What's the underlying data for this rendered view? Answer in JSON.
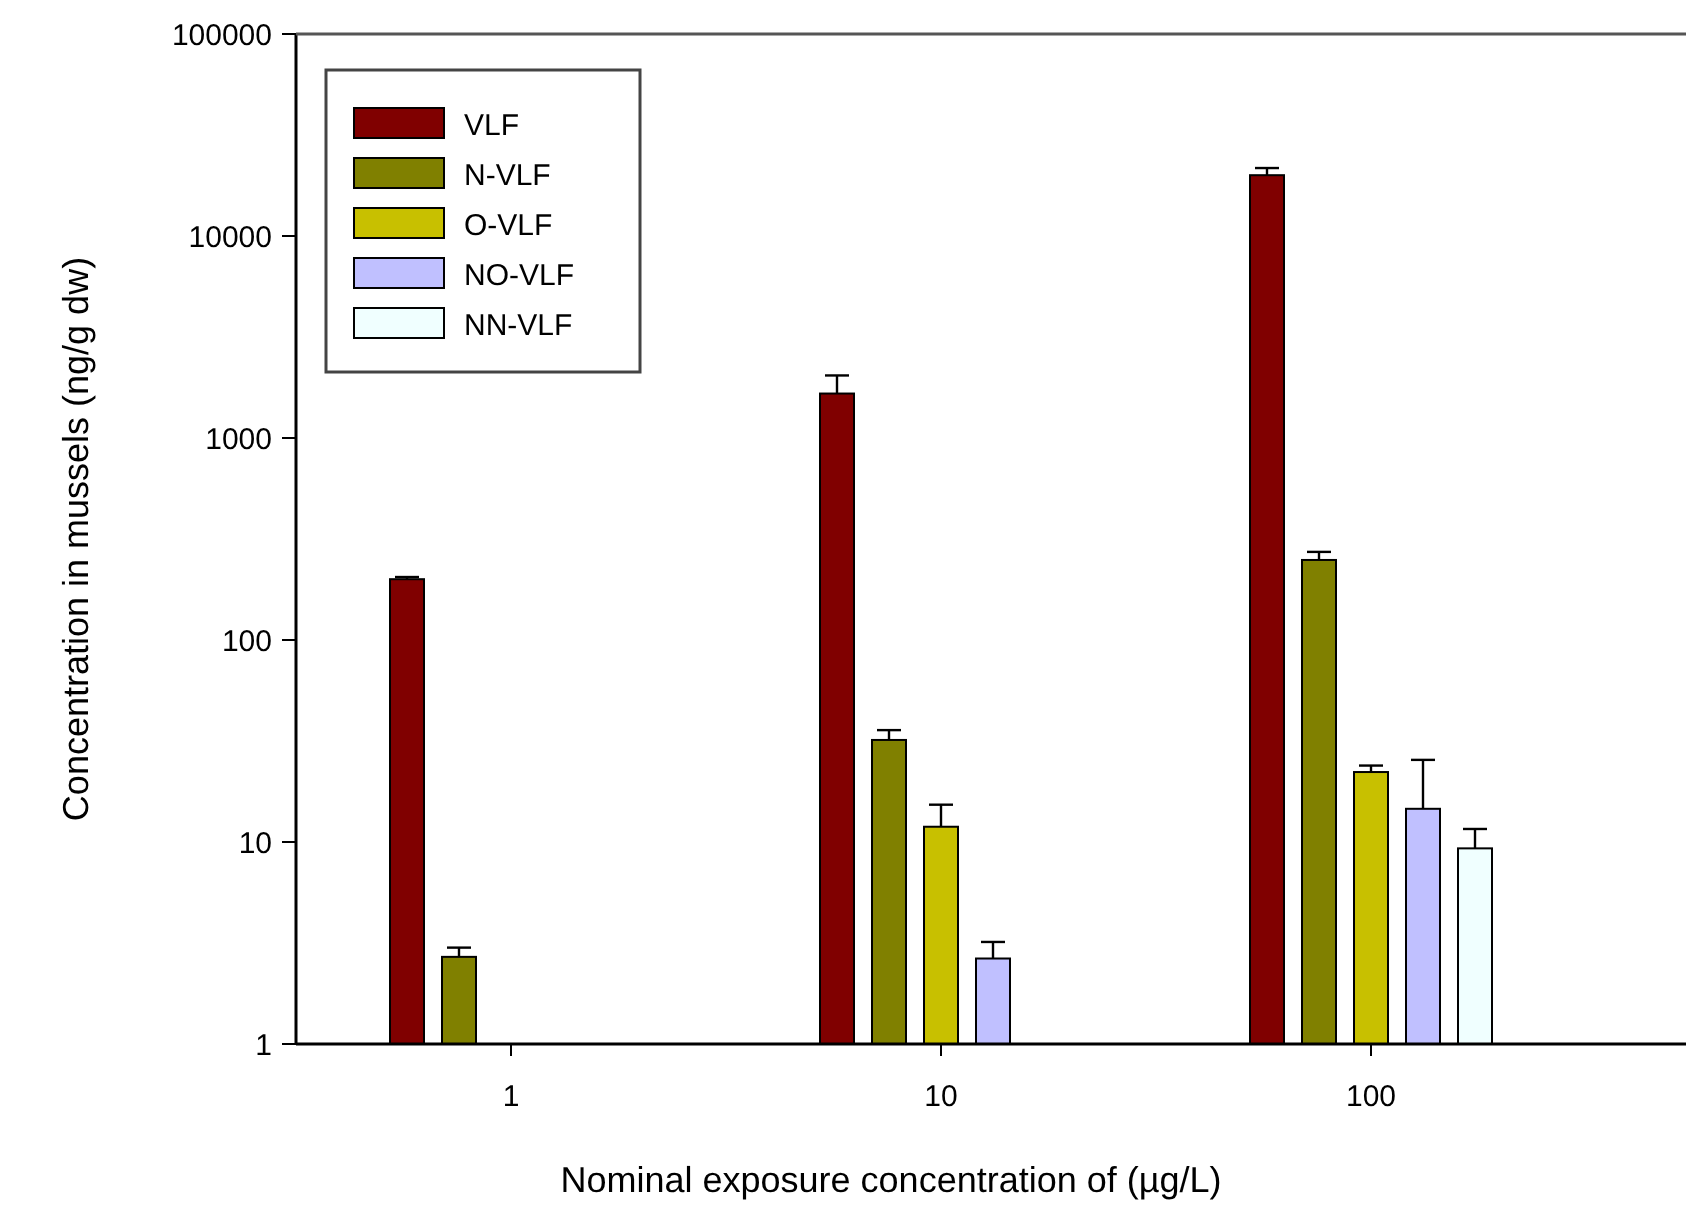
{
  "chart_data": {
    "type": "bar",
    "xlabel": "Nominal exposure concentration of (µg/L)",
    "ylabel": "Concentration in mussels (ng/g dw)",
    "categories": [
      "1",
      "10",
      "100"
    ],
    "log": true,
    "ylim": [
      1,
      100000
    ],
    "yticks": [
      1,
      10,
      100,
      1000,
      10000,
      100000
    ],
    "legend": "top left",
    "grid": false,
    "series": [
      {
        "name": "VLF",
        "color": "#800000",
        "values": [
          200,
          1660,
          20000
        ],
        "errors": [
          5,
          380,
          1700
        ]
      },
      {
        "name": "N-VLF",
        "color": "#808000",
        "values": [
          2.7,
          32,
          249
        ],
        "errors": [
          0.3,
          3.8,
          24
        ]
      },
      {
        "name": "O-VLF",
        "color": "#c8c000",
        "values": [
          null,
          11.9,
          22.2
        ],
        "errors": [
          null,
          3.4,
          1.7
        ]
      },
      {
        "name": "NO-VLF",
        "color": "#c0c0ff",
        "values": [
          null,
          2.65,
          14.6
        ],
        "errors": [
          null,
          0.55,
          10.9
        ]
      },
      {
        "name": "NN-VLF",
        "color": "#f0ffff",
        "values": [
          null,
          null,
          9.3
        ],
        "errors": [
          null,
          null,
          2.3
        ]
      }
    ]
  }
}
